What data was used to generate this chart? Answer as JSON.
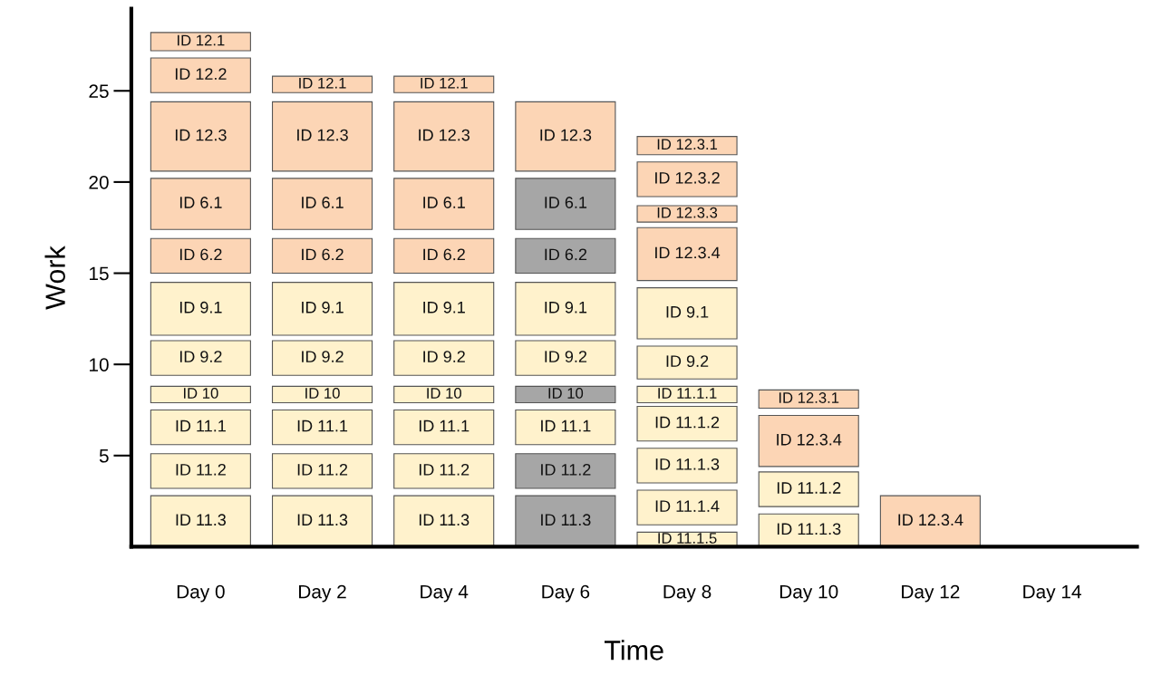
{
  "chart_data": {
    "type": "bar",
    "xlabel": "Time",
    "ylabel": "Work",
    "categories": [
      "Day 0",
      "Day 2",
      "Day 4",
      "Day 6",
      "Day 8",
      "Day 10",
      "Day 12",
      "Day 14"
    ],
    "ylim": [
      0,
      29.5
    ],
    "yticks": [
      5,
      10,
      15,
      20,
      25
    ],
    "grid": false,
    "legend": false,
    "series": [
      {
        "name": "ID 12.1",
        "values": [
          1.0,
          0.9,
          0.9,
          null,
          null,
          null,
          null,
          null
        ],
        "base": [
          27.2,
          24.9,
          24.9,
          null,
          null,
          null,
          null,
          null
        ],
        "colors": [
          "#fcd5b5",
          "#fcd5b5",
          "#fcd5b5",
          null,
          null,
          null,
          null,
          null
        ]
      },
      {
        "name": "ID 12.2",
        "values": [
          1.9,
          null,
          null,
          null,
          null,
          null,
          null,
          null
        ],
        "base": [
          24.9,
          null,
          null,
          null,
          null,
          null,
          null,
          null
        ],
        "colors": [
          "#fcd5b5",
          null,
          null,
          null,
          null,
          null,
          null,
          null
        ]
      },
      {
        "name": "ID 12.3",
        "values": [
          3.8,
          3.8,
          3.8,
          3.8,
          null,
          null,
          null,
          null
        ],
        "base": [
          20.6,
          20.6,
          20.6,
          20.6,
          null,
          null,
          null,
          null
        ],
        "colors": [
          "#fcd5b5",
          "#fcd5b5",
          "#fcd5b5",
          "#fcd5b5",
          null,
          null,
          null,
          null
        ]
      },
      {
        "name": "ID 6.1",
        "values": [
          2.8,
          2.8,
          2.8,
          2.8,
          null,
          null,
          null,
          null
        ],
        "base": [
          17.4,
          17.4,
          17.4,
          17.4,
          null,
          null,
          null,
          null
        ],
        "colors": [
          "#fcd5b5",
          "#fcd5b5",
          "#fcd5b5",
          "#a6a6a6",
          null,
          null,
          null,
          null
        ]
      },
      {
        "name": "ID 6.2",
        "values": [
          1.9,
          1.9,
          1.9,
          1.9,
          null,
          null,
          null,
          null
        ],
        "base": [
          15.0,
          15.0,
          15.0,
          15.0,
          null,
          null,
          null,
          null
        ],
        "colors": [
          "#fcd5b5",
          "#fcd5b5",
          "#fcd5b5",
          "#a6a6a6",
          null,
          null,
          null,
          null
        ]
      },
      {
        "name": "ID 9.1",
        "values": [
          2.9,
          2.9,
          2.9,
          2.9,
          2.8,
          null,
          null,
          null
        ],
        "base": [
          11.6,
          11.6,
          11.6,
          11.6,
          11.4,
          null,
          null,
          null
        ],
        "colors": [
          "#fff2cc",
          "#fff2cc",
          "#fff2cc",
          "#fff2cc",
          "#fff2cc",
          null,
          null,
          null
        ]
      },
      {
        "name": "ID 9.2",
        "values": [
          1.9,
          1.9,
          1.9,
          1.9,
          1.8,
          null,
          null,
          null
        ],
        "base": [
          9.4,
          9.4,
          9.4,
          9.4,
          9.2,
          null,
          null,
          null
        ],
        "colors": [
          "#fff2cc",
          "#fff2cc",
          "#fff2cc",
          "#fff2cc",
          "#fff2cc",
          null,
          null,
          null
        ]
      },
      {
        "name": "ID 10",
        "values": [
          0.9,
          0.9,
          0.9,
          0.9,
          null,
          null,
          null,
          null
        ],
        "base": [
          7.9,
          7.9,
          7.9,
          7.9,
          null,
          null,
          null,
          null
        ],
        "colors": [
          "#fff2cc",
          "#fff2cc",
          "#fff2cc",
          "#a6a6a6",
          null,
          null,
          null,
          null
        ]
      },
      {
        "name": "ID 11.1",
        "values": [
          1.9,
          1.9,
          1.9,
          1.9,
          null,
          null,
          null,
          null
        ],
        "base": [
          5.6,
          5.6,
          5.6,
          5.6,
          null,
          null,
          null,
          null
        ],
        "colors": [
          "#fff2cc",
          "#fff2cc",
          "#fff2cc",
          "#fff2cc",
          null,
          null,
          null,
          null
        ]
      },
      {
        "name": "ID 11.2",
        "values": [
          1.9,
          1.9,
          1.9,
          1.9,
          null,
          null,
          null,
          null
        ],
        "base": [
          3.2,
          3.2,
          3.2,
          3.2,
          null,
          null,
          null,
          null
        ],
        "colors": [
          "#fff2cc",
          "#fff2cc",
          "#fff2cc",
          "#a6a6a6",
          null,
          null,
          null,
          null
        ]
      },
      {
        "name": "ID 11.3",
        "values": [
          2.8,
          2.8,
          2.8,
          2.8,
          null,
          null,
          null,
          null
        ],
        "base": [
          0,
          0,
          0,
          0,
          null,
          null,
          null,
          null
        ],
        "colors": [
          "#fff2cc",
          "#fff2cc",
          "#fff2cc",
          "#a6a6a6",
          null,
          null,
          null,
          null
        ]
      },
      {
        "name": "ID 12.3.1",
        "values": [
          null,
          null,
          null,
          null,
          1.0,
          1.0,
          null,
          null
        ],
        "base": [
          null,
          null,
          null,
          null,
          21.5,
          7.6,
          null,
          null
        ],
        "colors": [
          null,
          null,
          null,
          null,
          "#fcd5b5",
          "#fcd5b5",
          null,
          null
        ]
      },
      {
        "name": "ID 12.3.2",
        "values": [
          null,
          null,
          null,
          null,
          1.9,
          null,
          null,
          null
        ],
        "base": [
          null,
          null,
          null,
          null,
          19.2,
          null,
          null,
          null
        ],
        "colors": [
          null,
          null,
          null,
          null,
          "#fcd5b5",
          null,
          null,
          null
        ]
      },
      {
        "name": "ID 12.3.3",
        "values": [
          null,
          null,
          null,
          null,
          0.9,
          null,
          null,
          null
        ],
        "base": [
          null,
          null,
          null,
          null,
          17.8,
          null,
          null,
          null
        ],
        "colors": [
          null,
          null,
          null,
          null,
          "#fcd5b5",
          null,
          null,
          null
        ]
      },
      {
        "name": "ID 12.3.4",
        "values": [
          null,
          null,
          null,
          null,
          2.9,
          2.8,
          2.8,
          null
        ],
        "base": [
          null,
          null,
          null,
          null,
          14.6,
          4.4,
          0,
          null
        ],
        "colors": [
          null,
          null,
          null,
          null,
          "#fcd5b5",
          "#fcd5b5",
          "#fcd5b5",
          null
        ]
      },
      {
        "name": "ID 11.1.1",
        "values": [
          null,
          null,
          null,
          null,
          0.9,
          null,
          null,
          null
        ],
        "base": [
          null,
          null,
          null,
          null,
          7.9,
          null,
          null,
          null
        ],
        "colors": [
          null,
          null,
          null,
          null,
          "#fff2cc",
          null,
          null,
          null
        ]
      },
      {
        "name": "ID 11.1.2",
        "values": [
          null,
          null,
          null,
          null,
          1.9,
          1.9,
          null,
          null
        ],
        "base": [
          null,
          null,
          null,
          null,
          5.8,
          2.2,
          null,
          null
        ],
        "colors": [
          null,
          null,
          null,
          null,
          "#fff2cc",
          "#fff2cc",
          null,
          null
        ]
      },
      {
        "name": "ID 11.1.3",
        "values": [
          null,
          null,
          null,
          null,
          1.9,
          1.8,
          null,
          null
        ],
        "base": [
          null,
          null,
          null,
          null,
          3.5,
          0,
          null,
          null
        ],
        "colors": [
          null,
          null,
          null,
          null,
          "#fff2cc",
          "#fff2cc",
          null,
          null
        ]
      },
      {
        "name": "ID 11.1.4",
        "values": [
          null,
          null,
          null,
          null,
          1.9,
          null,
          null,
          null
        ],
        "base": [
          null,
          null,
          null,
          null,
          1.2,
          null,
          null,
          null
        ],
        "colors": [
          null,
          null,
          null,
          null,
          "#fff2cc",
          null,
          null,
          null
        ]
      },
      {
        "name": "ID 11.1.5",
        "values": [
          null,
          null,
          null,
          null,
          0.8,
          null,
          null,
          null
        ],
        "base": [
          null,
          null,
          null,
          null,
          0,
          null,
          null,
          null
        ],
        "colors": [
          null,
          null,
          null,
          null,
          "#fff2cc",
          null,
          null,
          null
        ]
      }
    ]
  }
}
